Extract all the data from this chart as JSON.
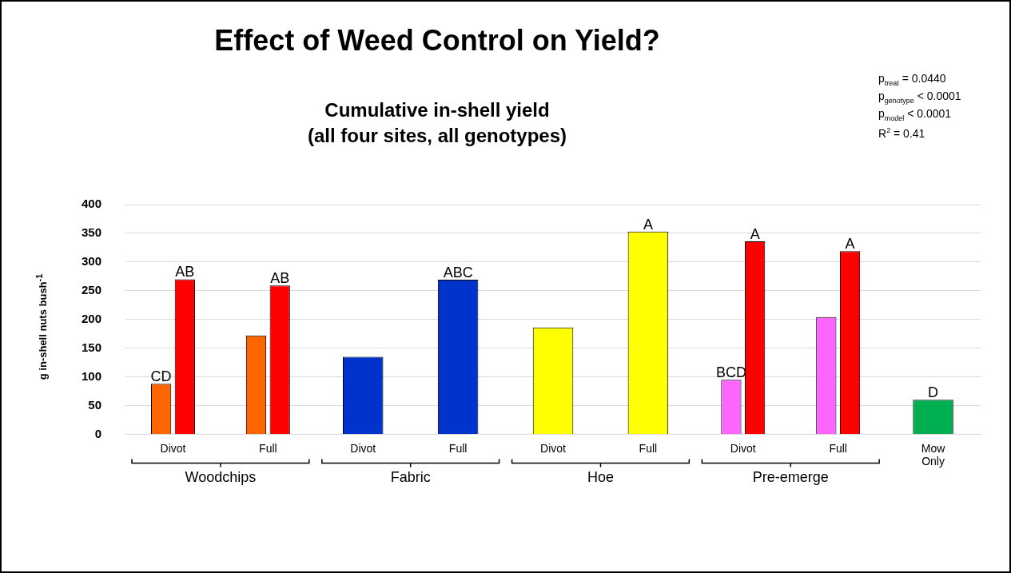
{
  "chart_data": {
    "type": "bar",
    "title": "Effect of Weed Control on Yield?",
    "subtitle": "Cumulative in-shell yield\n(all four sites, all genotypes)",
    "ylabel": "g in-shell nuts bush$^{-1}$",
    "categories": [
      "Divot",
      "Full",
      "Divot",
      "Full",
      "Divot",
      "Full",
      "Divot",
      "Full",
      "Mow Only"
    ],
    "series": [
      {
        "colors": [
          "#ff6600",
          "#ff6600",
          "#0033cc",
          "#0033cc",
          "#ffff00",
          "#ffff00",
          "#ff66ff",
          "#ff66ff",
          "#00b050"
        ],
        "values": [
          88,
          172,
          135,
          269,
          186,
          353,
          95,
          204,
          60
        ],
        "value_labels": [
          "CD",
          null,
          null,
          "ABC",
          null,
          "A",
          "BCD",
          null,
          "D"
        ]
      },
      {
        "color": "#ff0000",
        "values": [
          270,
          259,
          null,
          null,
          null,
          null,
          336,
          319,
          null
        ],
        "value_labels": [
          "AB",
          "AB",
          null,
          null,
          null,
          null,
          "A",
          "A",
          null
        ]
      }
    ],
    "annotations": [
      "Woodchips",
      "Fabric",
      "Hoe",
      "Pre-emerge",
      "p$_{treat}$ = 0.0440\np$_{genotype}$ < 0.0001\np$_{model}$ < 0.0001\nR$^{2}$ = 0.41"
    ],
    "ylim": [
      0,
      400
    ],
    "yticks": [
      0,
      50,
      100,
      150,
      200,
      250,
      300,
      350,
      400
    ],
    "grid": "y",
    "legend": false
  }
}
